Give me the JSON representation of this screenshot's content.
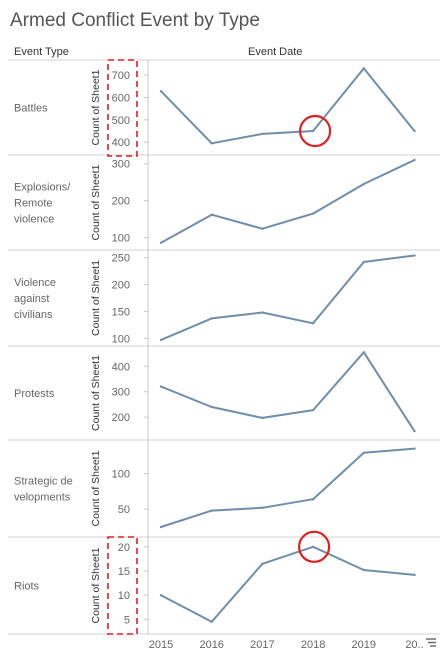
{
  "title": "Armed Conflict Event by Type",
  "headers": {
    "row_dim": "Event Type",
    "col_dim": "Event Date"
  },
  "colors": {
    "line": "#6f8eab",
    "axis": "#c8c8c8",
    "divider": "#d3d3d3",
    "text": "#666666",
    "annotation": "#e02020"
  },
  "x_tick_labels": [
    "2015",
    "2016",
    "2017",
    "2018",
    "2019",
    "20.."
  ],
  "annotations": [
    "dashed-box-battles-axis",
    "dashed-box-riots-axis",
    "circle-battles-2018",
    "circle-riots-2018"
  ],
  "icons": [
    "sort-icon"
  ],
  "chart_data": [
    {
      "type": "line",
      "row_label": [
        "Battles"
      ],
      "ylabel": "Count of Sheet1",
      "x": [
        2015,
        2016,
        2017,
        2018,
        2019,
        2020
      ],
      "values": [
        628,
        395,
        437,
        450,
        730,
        450
      ],
      "ylim": [
        365,
        745
      ],
      "yticks": [
        400,
        500,
        600,
        700
      ]
    },
    {
      "type": "line",
      "row_label": [
        "Explosions/",
        "Remote",
        "violence"
      ],
      "ylabel": "Count of Sheet1",
      "x": [
        2015,
        2016,
        2017,
        2018,
        2019,
        2020
      ],
      "values": [
        86,
        162,
        124,
        165,
        245,
        310
      ],
      "ylim": [
        80,
        310
      ],
      "yticks": [
        100,
        200,
        300
      ]
    },
    {
      "type": "line",
      "row_label": [
        "Violence",
        "against",
        "civilians"
      ],
      "ylabel": "Count of Sheet1",
      "x": [
        2015,
        2016,
        2017,
        2018,
        2019,
        2020
      ],
      "values": [
        97,
        137,
        148,
        128,
        242,
        254
      ],
      "ylim": [
        95,
        255
      ],
      "yticks": [
        100,
        150,
        200,
        250
      ]
    },
    {
      "type": "line",
      "row_label": [
        "Protests"
      ],
      "ylabel": "Count of Sheet1",
      "x": [
        2015,
        2016,
        2017,
        2018,
        2019,
        2020
      ],
      "values": [
        320,
        240,
        197,
        228,
        455,
        145
      ],
      "ylim": [
        130,
        460
      ],
      "yticks": [
        200,
        300,
        400
      ]
    },
    {
      "type": "line",
      "row_label": [
        "Strategic de",
        "velopments"
      ],
      "ylabel": "Count of Sheet1",
      "x": [
        2015,
        2016,
        2017,
        2018,
        2019,
        2020
      ],
      "values": [
        25,
        48,
        52,
        64,
        129,
        135
      ],
      "ylim": [
        18,
        140
      ],
      "yticks": [
        50,
        100
      ]
    },
    {
      "type": "line",
      "row_label": [
        "Riots"
      ],
      "ylabel": "Count of Sheet1",
      "x": [
        2015,
        2016,
        2017,
        2018,
        2019,
        2020
      ],
      "values": [
        10,
        4.5,
        16.5,
        20,
        15.2,
        14.2
      ],
      "ylim": [
        3,
        21
      ],
      "yticks": [
        5,
        10,
        15,
        20
      ]
    }
  ]
}
